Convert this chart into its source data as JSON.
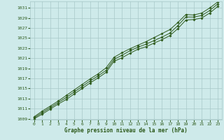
{
  "x": [
    0,
    1,
    2,
    3,
    4,
    5,
    6,
    7,
    8,
    9,
    10,
    11,
    12,
    13,
    14,
    15,
    16,
    17,
    18,
    19,
    20,
    21,
    22,
    23
  ],
  "y_main": [
    1009.2,
    1010.2,
    1011.2,
    1012.2,
    1013.2,
    1014.3,
    1015.4,
    1016.5,
    1017.5,
    1018.6,
    1020.8,
    1021.6,
    1022.5,
    1023.2,
    1023.8,
    1024.5,
    1025.2,
    1026.0,
    1027.5,
    1029.2,
    1029.2,
    1029.5,
    1030.5,
    1031.8
  ],
  "y_upper": [
    1009.4,
    1010.5,
    1011.5,
    1012.5,
    1013.6,
    1014.7,
    1015.8,
    1016.9,
    1017.9,
    1019.1,
    1021.2,
    1022.1,
    1022.9,
    1023.6,
    1024.3,
    1025.1,
    1025.9,
    1026.7,
    1028.1,
    1029.7,
    1029.6,
    1030.0,
    1031.0,
    1032.2
  ],
  "y_lower": [
    1009.0,
    1009.9,
    1010.9,
    1011.9,
    1012.8,
    1013.9,
    1015.0,
    1016.1,
    1017.1,
    1018.2,
    1020.4,
    1021.1,
    1022.0,
    1022.8,
    1023.3,
    1024.0,
    1024.7,
    1025.5,
    1026.9,
    1028.6,
    1028.7,
    1029.0,
    1030.0,
    1031.3
  ],
  "ylim_min": 1009,
  "ylim_max": 1032,
  "yticks": [
    1009,
    1011,
    1013,
    1015,
    1017,
    1019,
    1021,
    1023,
    1025,
    1027,
    1029,
    1031
  ],
  "xticks": [
    0,
    1,
    2,
    3,
    4,
    5,
    6,
    7,
    8,
    9,
    10,
    11,
    12,
    13,
    14,
    15,
    16,
    17,
    18,
    19,
    20,
    21,
    22,
    23
  ],
  "line_color": "#2d5a1b",
  "bg_color": "#ceeaea",
  "grid_color": "#a8c8c8",
  "xlabel": "Graphe pression niveau de la mer (hPa)",
  "xlabel_color": "#2d5a1b",
  "tick_color": "#2d5a1b",
  "marker": "D",
  "marker_size": 1.8,
  "line_width": 0.7
}
